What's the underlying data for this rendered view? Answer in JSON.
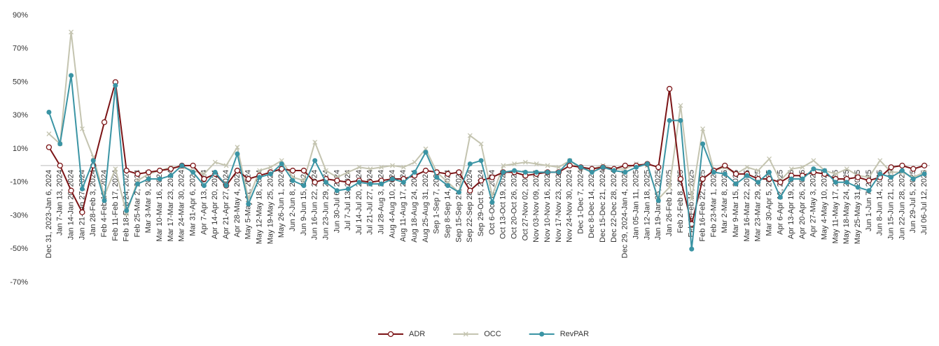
{
  "chart_data": {
    "type": "line",
    "categories": [
      "Dec 31, 2023-Jan 6, 2024",
      "Jan 7-Jan 13, 2024",
      "Jan 14-Jan 20, 2024",
      "Jan 21-Jan 27, 2024",
      "Jan 28-Feb 3, 2024",
      "Feb 4-Feb 10, 2024",
      "Feb 11-Feb 17, 2024",
      "Feb 18-Feb 24, 2024",
      "Feb 25-Mar 2, 2024",
      "Mar 3-Mar 9, 2024",
      "Mar 10-Mar 16, 2024",
      "Mar 17-Mar 23, 2024",
      "Mar 24-Mar 30, 2024",
      "Mar 31-Apr 6, 2024",
      "Apr 7-Apr 13, 2024",
      "Apr 14-Apr 20, 2024",
      "Apr 21-Apr 27, 2024",
      "Apr 28-May 4, 2024",
      "May 5-May 11, 2024",
      "May 12-May 18, 2024",
      "May 19-May 25, 2024",
      "May 26-Jun 1, 2024",
      "Jun 2-Jun 8, 2024",
      "Jun 9-Jun 15, 2024",
      "Jun 16-Jun 22, 2024",
      "Jun 23-Jun 29, 2024",
      "Jun 30-Jul 6, 2024",
      "Jul 7-Jul 13, 2024",
      "Jul 14-Jul 20, 2024",
      "Jul 21-Jul 27, 2024",
      "Jul 28-Aug 3, 2024",
      "Aug 4-Aug 10, 2024",
      "Aug 11-Aug 17, 2024",
      "Aug 18-Aug 24, 2024",
      "Aug 25-Aug 31, 2024",
      "Sep 1-Sep 7, 2024",
      "Sep 8-Sep 14, 2024",
      "Sep 15-Sep 21, 2024",
      "Sep 22-Sep 28, 2024",
      "Sep 29-Oct 5, 2024",
      "Oct 6-Oct 12, 2024",
      "Oct 13-Oct 19, 2024",
      "Oct 20-Oct 26, 2024",
      "Oct 27-Nov 02, 2024",
      "Nov 03-Nov 09, 2024",
      "Nov 10-Nov 16, 2024",
      "Nov 17-Nov 23, 2024",
      "Nov 24-Nov 30, 2024",
      "Dec 1-Dec 7, 2024",
      "Dec 8-Dec 14, 2024",
      "Dec 15-Dec 21, 2024",
      "Dec 22-Dec 28, 2024",
      "Dec 29, 2024-Jan 4, 2025",
      "Jan 05-Jan 11, 2025",
      "Jan 12-Jan 18, 2025",
      "Jan 19-Jan 25, 2025",
      "Jan 26-Feb 1, 2025",
      "Feb 2-Feb 8, 2025",
      "Feb 9-Feb 15, 2025",
      "Feb 16-Feb 22, 2025",
      "Feb 23-Mar 1, 2025",
      "Mar 2-Mar 8, 2025",
      "Mar 9-Mar 15, 2025",
      "Mar 16-Mar 22, 2025",
      "Mar 23-Mar 29, 2025",
      "Mar 30-Apr 5, 2025",
      "Apr 6-Apr 12, 2025",
      "Apr 13-Apr 19, 2025",
      "Apr 20-Apr 26, 2025",
      "Apr 27-May 3, 2025",
      "May 4-May 10, 2025",
      "May 11-May 17, 2025",
      "May 18-May 24, 2025",
      "May 25-May 31, 2025",
      "Jun 1-Jun 7, 2025",
      "Jun 8-Jun 14, 2025",
      "Jun 15-Jun 21, 2025",
      "Jun 22-Jun 28, 2025",
      "Jun 29-Jul 5, 2025",
      "Jul 06-Jul 12, 2025"
    ],
    "series": [
      {
        "name": "ADR",
        "color": "#7b1416",
        "marker": "open-circle",
        "values": [
          11,
          0,
          -15,
          -28,
          0,
          26,
          50,
          -3,
          -5,
          -4,
          -3,
          -2,
          0,
          0,
          -8,
          -5,
          -12,
          -3,
          -8,
          -6,
          -4,
          -2,
          -3,
          -3,
          -10,
          -8,
          -9,
          -10,
          -9,
          -10,
          -9,
          -8,
          -8,
          -6,
          -3,
          -4,
          -5,
          -4,
          -15,
          -9,
          -7,
          -4,
          -4,
          -6,
          -5,
          -4,
          -4,
          0,
          -1,
          -2,
          -1,
          -2,
          0,
          0,
          1,
          -1,
          46,
          -8,
          -35,
          -8,
          -3,
          0,
          -5,
          -5,
          -8,
          -8,
          -10,
          -6,
          -6,
          -4,
          -5,
          -8,
          -8,
          -7,
          -9,
          -7,
          -1,
          0,
          -2,
          0
        ]
      },
      {
        "name": "OCC",
        "color": "#c4c4b0",
        "marker": "cross",
        "values": [
          19,
          13,
          80,
          22,
          5,
          -18,
          -2,
          -29,
          -9,
          -5,
          -3,
          -1,
          -1,
          -3,
          -5,
          2,
          0,
          11,
          -20,
          -3,
          -1,
          3,
          -7,
          -9,
          14,
          -3,
          -7,
          -4,
          -1,
          -2,
          -1,
          0,
          -1,
          2,
          10,
          -4,
          -10,
          -16,
          18,
          13,
          -18,
          0,
          1,
          2,
          1,
          0,
          -1,
          3,
          -2,
          -2,
          0,
          -2,
          -2,
          1,
          0,
          -20,
          -13,
          36,
          -20,
          22,
          -3,
          -1,
          -5,
          -1,
          -3,
          4,
          -9,
          -2,
          -1,
          3,
          -3,
          -5,
          -2,
          -6,
          -7,
          3,
          -4,
          -4,
          -7,
          -4
        ]
      },
      {
        "name": "RevPAR",
        "color": "#3a94a4",
        "marker": "dot",
        "values": [
          32,
          13,
          54,
          -14,
          3,
          -21,
          48,
          -27,
          -11,
          -8,
          -8,
          -6,
          0,
          -4,
          -12,
          -4,
          -12,
          7,
          -23,
          -7,
          -5,
          1,
          -9,
          -12,
          3,
          -10,
          -15,
          -14,
          -10,
          -11,
          -11,
          -8,
          -10,
          -4,
          8,
          -7,
          -12,
          -16,
          1,
          3,
          -22,
          -4,
          -3,
          -4,
          -4,
          -4,
          -4,
          3,
          -1,
          -4,
          -1,
          -3,
          -4,
          -1,
          1,
          -21,
          27,
          27,
          -50,
          13,
          -4,
          -5,
          -11,
          -6,
          -10,
          -4,
          -19,
          -8,
          -8,
          -2,
          -3,
          -10,
          -10,
          -13,
          -15,
          -5,
          -7,
          -3,
          -8,
          -5
        ]
      }
    ],
    "ylim": [
      -70,
      90
    ],
    "yticks": [
      {
        "value": -70,
        "label": "-70%"
      },
      {
        "value": -50,
        "label": "-50%"
      },
      {
        "value": -30,
        "label": "-30%"
      },
      {
        "value": -10,
        "label": "-10%"
      },
      {
        "value": 10,
        "label": "10%"
      },
      {
        "value": 30,
        "label": "30%"
      },
      {
        "value": 50,
        "label": "50%"
      },
      {
        "value": 70,
        "label": "70%"
      },
      {
        "value": 90,
        "label": "90%"
      }
    ],
    "grid": false,
    "legend": "bottom"
  }
}
